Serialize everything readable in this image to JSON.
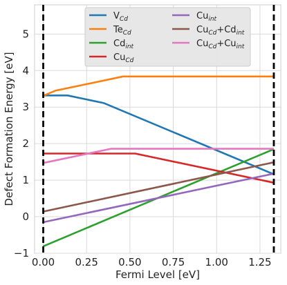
{
  "chart_data": {
    "type": "line",
    "xlabel": "Fermi Level [eV]",
    "ylabel": "Defect Formation Energy [eV]",
    "xlim": [
      -0.05,
      1.37
    ],
    "ylim": [
      -1,
      5.8
    ],
    "x_ticks": [
      "0.00",
      "0.25",
      "0.50",
      "0.75",
      "1.00",
      "1.25"
    ],
    "y_ticks": [
      "−1",
      "0",
      "1",
      "2",
      "3",
      "4",
      "5"
    ],
    "x_tick_values": [
      0,
      0.25,
      0.5,
      0.75,
      1.0,
      1.25
    ],
    "y_tick_values": [
      -1,
      0,
      1,
      2,
      3,
      4,
      5
    ],
    "vlines": [
      0.0,
      1.33
    ],
    "grid": true,
    "legend_position": "top",
    "series": [
      {
        "name": "V_Cd",
        "label_base": "V",
        "label_sub": "Cd",
        "color": "#1f77b4",
        "x": [
          0,
          0.14,
          0.35,
          1.33
        ],
        "y": [
          3.32,
          3.32,
          3.11,
          1.16
        ]
      },
      {
        "name": "Te_Cd",
        "label_base": "Te",
        "label_sub": "Cd",
        "color": "#ff7f0e",
        "x": [
          0,
          0.07,
          0.46,
          1.33
        ],
        "y": [
          3.31,
          3.45,
          3.84,
          3.84
        ]
      },
      {
        "name": "Cd_int",
        "label_base": "Cd",
        "label_sub": "int",
        "color": "#2ca02c",
        "x": [
          0,
          1.33
        ],
        "y": [
          -0.81,
          1.85
        ]
      },
      {
        "name": "Cu_Cd",
        "label_base": "Cu",
        "label_sub": "Cd",
        "color": "#d62728",
        "x": [
          0,
          0.53,
          1.33
        ],
        "y": [
          1.73,
          1.73,
          0.93
        ]
      },
      {
        "name": "Cu_int",
        "label_base": "Cu",
        "label_sub": "int",
        "color": "#9467bd",
        "x": [
          0,
          1.33
        ],
        "y": [
          -0.15,
          1.18
        ]
      },
      {
        "name": "Cu_Cd+Cd_int",
        "label_base": "Cu",
        "label_sub": "Cd",
        "label_base2": "+Cd",
        "label_sub2": "int",
        "color": "#8c564b",
        "x": [
          0,
          1.33
        ],
        "y": [
          0.14,
          1.49
        ]
      },
      {
        "name": "Cu_Cd+Cu_int",
        "label_base": "Cu",
        "label_sub": "Cd",
        "label_base2": "+Cu",
        "label_sub2": "int",
        "color": "#e377c2",
        "x": [
          0,
          0.39,
          1.33
        ],
        "y": [
          1.47,
          1.86,
          1.86
        ]
      }
    ]
  }
}
